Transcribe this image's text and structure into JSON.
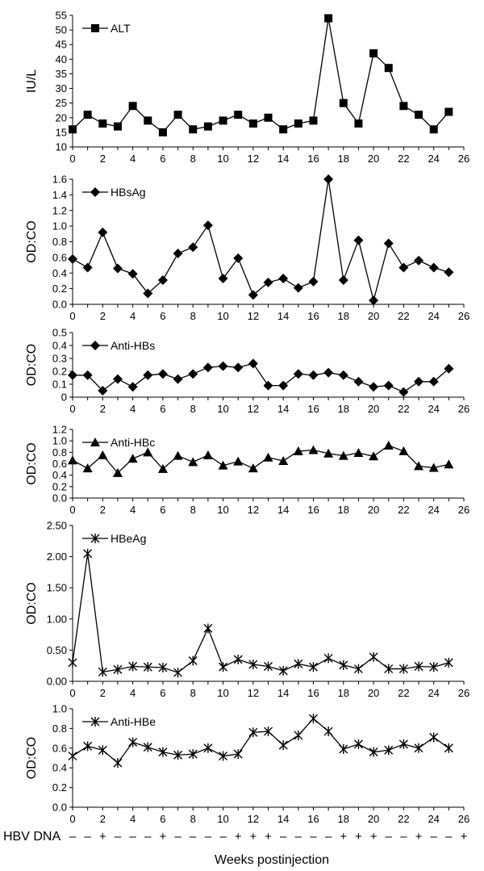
{
  "chart_data": [
    {
      "type": "line",
      "ylabel": "IU/L",
      "ylim": [
        10,
        55
      ],
      "ytick_labels": [
        "10",
        "15",
        "20",
        "25",
        "30",
        "35",
        "40",
        "45",
        "50",
        "55"
      ],
      "xlim": [
        0,
        26
      ],
      "xtick_labels": [
        "0",
        "2",
        "4",
        "6",
        "8",
        "10",
        "12",
        "14",
        "16",
        "18",
        "20",
        "22",
        "24",
        "26"
      ],
      "legend": "top-left",
      "series": [
        {
          "name": "ALT",
          "marker": "square",
          "x": [
            0,
            1,
            2,
            3,
            4,
            5,
            6,
            7,
            8,
            9,
            10,
            11,
            12,
            13,
            14,
            15,
            16,
            17,
            18,
            19,
            20,
            21,
            22,
            23,
            24,
            25
          ],
          "values": [
            16,
            21,
            18,
            17,
            24,
            19,
            15,
            21,
            16,
            17,
            19,
            21,
            18,
            20,
            16,
            18,
            19,
            54,
            25,
            18,
            42,
            37,
            24,
            21,
            16,
            22
          ]
        }
      ]
    },
    {
      "type": "line",
      "ylabel": "OD:CO",
      "ylim": [
        0,
        1.6
      ],
      "ytick_labels": [
        "0.0",
        "0.2",
        "0.4",
        "0.6",
        "0.8",
        "1.0",
        "1.2",
        "1.4",
        "1.6"
      ],
      "xlim": [
        0,
        26
      ],
      "xtick_labels": [
        "0",
        "2",
        "4",
        "6",
        "8",
        "10",
        "12",
        "14",
        "16",
        "18",
        "20",
        "22",
        "24",
        "26"
      ],
      "legend": "top-left",
      "series": [
        {
          "name": "HBsAg",
          "marker": "diamond",
          "x": [
            0,
            1,
            2,
            3,
            4,
            5,
            6,
            7,
            8,
            9,
            10,
            11,
            12,
            13,
            14,
            15,
            16,
            17,
            18,
            19,
            20,
            21,
            22,
            23,
            24,
            25
          ],
          "values": [
            0.58,
            0.47,
            0.92,
            0.46,
            0.39,
            0.14,
            0.31,
            0.65,
            0.73,
            1.01,
            0.33,
            0.59,
            0.12,
            0.28,
            0.33,
            0.21,
            0.29,
            1.6,
            0.31,
            0.82,
            0.05,
            0.78,
            0.47,
            0.56,
            0.47,
            0.41
          ]
        }
      ]
    },
    {
      "type": "line",
      "ylabel": "OD:CO",
      "ylim": [
        0,
        0.5
      ],
      "ytick_labels": [
        "0",
        "0.1",
        "0.2",
        "0.3",
        "0.4",
        "0.5"
      ],
      "xlim": [
        0,
        26
      ],
      "xtick_labels": [
        "0",
        "2",
        "4",
        "6",
        "8",
        "10",
        "12",
        "14",
        "16",
        "18",
        "20",
        "22",
        "24",
        "26"
      ],
      "legend": "top-left",
      "series": [
        {
          "name": "Anti-HBs",
          "marker": "diamond",
          "x": [
            0,
            1,
            2,
            3,
            4,
            5,
            6,
            7,
            8,
            9,
            10,
            11,
            12,
            13,
            14,
            15,
            16,
            17,
            18,
            19,
            20,
            21,
            22,
            23,
            24,
            25
          ],
          "values": [
            0.17,
            0.17,
            0.05,
            0.14,
            0.08,
            0.17,
            0.18,
            0.14,
            0.18,
            0.23,
            0.24,
            0.23,
            0.26,
            0.09,
            0.09,
            0.18,
            0.17,
            0.19,
            0.17,
            0.12,
            0.08,
            0.09,
            0.04,
            0.12,
            0.12,
            0.22
          ]
        }
      ]
    },
    {
      "type": "line",
      "ylabel": "OD:CO",
      "ylim": [
        0,
        1.2
      ],
      "ytick_labels": [
        "0.0",
        "0.2",
        "0.4",
        "0.6",
        "0.8",
        "1.0",
        "1.2"
      ],
      "xlim": [
        0,
        26
      ],
      "xtick_labels": [
        "0",
        "2",
        "4",
        "6",
        "8",
        "10",
        "12",
        "14",
        "16",
        "18",
        "20",
        "22",
        "24",
        "26"
      ],
      "legend": "top-left",
      "series": [
        {
          "name": "Anti-HBc",
          "marker": "triangle",
          "x": [
            0,
            1,
            2,
            3,
            4,
            5,
            6,
            7,
            8,
            9,
            10,
            11,
            12,
            13,
            14,
            15,
            16,
            17,
            18,
            19,
            20,
            21,
            22,
            23,
            24,
            25
          ],
          "values": [
            0.66,
            0.52,
            0.75,
            0.44,
            0.69,
            0.8,
            0.51,
            0.74,
            0.63,
            0.75,
            0.57,
            0.64,
            0.52,
            0.71,
            0.65,
            0.82,
            0.84,
            0.78,
            0.74,
            0.79,
            0.73,
            0.92,
            0.82,
            0.56,
            0.53,
            0.59
          ]
        }
      ]
    },
    {
      "type": "line",
      "ylabel": "OD:CO",
      "ylim": [
        0,
        2.5
      ],
      "ytick_labels": [
        "0.00",
        "0.50",
        "1.00",
        "1.50",
        "2.00",
        "2.50"
      ],
      "xlim": [
        0,
        26
      ],
      "xtick_labels": [
        "0",
        "2",
        "4",
        "6",
        "8",
        "10",
        "12",
        "14",
        "16",
        "18",
        "20",
        "22",
        "24",
        "26"
      ],
      "legend": "top-left",
      "series": [
        {
          "name": "HBeAg",
          "marker": "star",
          "x": [
            0,
            1,
            2,
            3,
            4,
            5,
            6,
            7,
            8,
            9,
            10,
            11,
            12,
            13,
            14,
            15,
            16,
            17,
            18,
            19,
            20,
            21,
            22,
            23,
            24,
            25
          ],
          "values": [
            0.3,
            2.05,
            0.15,
            0.19,
            0.24,
            0.23,
            0.22,
            0.14,
            0.33,
            0.85,
            0.23,
            0.35,
            0.27,
            0.24,
            0.17,
            0.28,
            0.23,
            0.37,
            0.26,
            0.2,
            0.39,
            0.2,
            0.2,
            0.24,
            0.23,
            0.3
          ]
        }
      ]
    },
    {
      "type": "line",
      "ylabel": "OD:CO",
      "ylim": [
        0,
        1.0
      ],
      "ytick_labels": [
        "0.0",
        "0.2",
        "0.4",
        "0.6",
        "0.8",
        "1.0"
      ],
      "xlim": [
        0,
        26
      ],
      "xtick_labels": [
        "0",
        "2",
        "4",
        "6",
        "8",
        "10",
        "12",
        "14",
        "16",
        "18",
        "20",
        "22",
        "24",
        "26"
      ],
      "legend": "top-left",
      "series": [
        {
          "name": "Anti-HBe",
          "marker": "star",
          "x": [
            0,
            1,
            2,
            3,
            4,
            5,
            6,
            7,
            8,
            9,
            10,
            11,
            12,
            13,
            14,
            15,
            16,
            17,
            18,
            19,
            20,
            21,
            22,
            23,
            24,
            25
          ],
          "values": [
            0.52,
            0.62,
            0.58,
            0.45,
            0.66,
            0.61,
            0.56,
            0.53,
            0.54,
            0.6,
            0.52,
            0.54,
            0.76,
            0.77,
            0.63,
            0.73,
            0.9,
            0.77,
            0.59,
            0.64,
            0.56,
            0.58,
            0.64,
            0.6,
            0.71,
            0.6
          ]
        }
      ]
    }
  ],
  "hbv_dna": {
    "label": "HBV DNA",
    "values": [
      "–",
      "–",
      "+",
      "–",
      "–",
      "–",
      "+",
      "–",
      "–",
      "–",
      "–",
      "+",
      "+",
      "+",
      "–",
      "–",
      "–",
      "–",
      "+",
      "+",
      "+",
      "–",
      "–",
      "+",
      "–",
      "–",
      "+"
    ]
  },
  "xlabel": "Weeks postinjection"
}
